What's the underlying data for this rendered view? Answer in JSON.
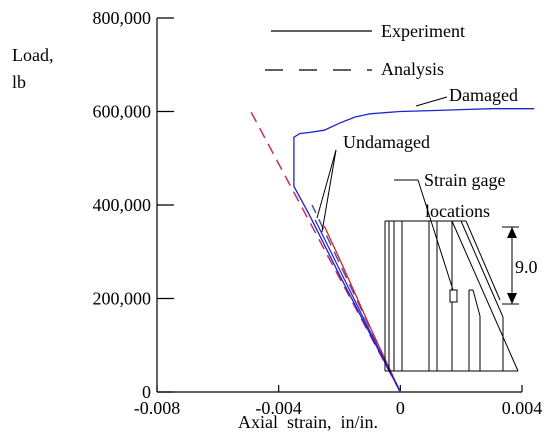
{
  "chart_data": {
    "type": "line",
    "title": "",
    "xlabel": "Axial  strain,  in/in.",
    "ylabel_lines": [
      "Load,",
      "lb"
    ],
    "xlim": [
      -0.008,
      0.004
    ],
    "ylim": [
      0,
      800000
    ],
    "x_ticks": [
      -0.008,
      -0.004,
      0,
      0.004
    ],
    "x_tick_labels": [
      "-0.008",
      "-0.004",
      "0",
      "0.004"
    ],
    "y_ticks": [
      0,
      200000,
      400000,
      600000,
      800000
    ],
    "y_tick_labels": [
      "0",
      "200,000",
      "400,000",
      "600,000",
      "800,000"
    ],
    "grid": false,
    "legend": {
      "position": "top-right",
      "entries": [
        {
          "label": "Experiment",
          "style": "solid"
        },
        {
          "label": "Analysis",
          "style": "dashed"
        }
      ]
    },
    "series": [
      {
        "key": "analysis_damaged",
        "style": "dashed",
        "color": "#cc2a6a",
        "x": [
          0,
          -0.005
        ],
        "y": [
          0,
          610000
        ]
      },
      {
        "key": "analysis_undamaged",
        "style": "dashed",
        "color": "#4a4fb0",
        "x": [
          0,
          -0.0029
        ],
        "y": [
          0,
          400000
        ]
      },
      {
        "key": "experiment_undamaged_a",
        "style": "solid",
        "color": "#dd2020",
        "x": [
          0,
          -0.001,
          -0.002,
          -0.0025
        ],
        "y": [
          0,
          140000,
          285000,
          355000
        ]
      },
      {
        "key": "experiment_undamaged_b",
        "style": "solid",
        "color": "#2b2bd0",
        "x": [
          0,
          -0.001,
          -0.002,
          -0.0028
        ],
        "y": [
          0,
          130000,
          262000,
          368000
        ]
      },
      {
        "key": "experiment_damaged",
        "style": "solid",
        "color": "#2020d0",
        "x": [
          0,
          -0.001,
          -0.002,
          -0.003,
          -0.0035,
          -0.0035,
          -0.0033,
          -0.003,
          -0.0025,
          -0.002,
          -0.0015,
          -0.001,
          0,
          0.001,
          0.002,
          0.003,
          0.004,
          0.0044
        ],
        "y": [
          0,
          125000,
          250000,
          380000,
          440000,
          545000,
          553000,
          555000,
          560000,
          575000,
          588000,
          595000,
          600000,
          602000,
          604000,
          606000,
          606000,
          606000
        ]
      }
    ],
    "annotations": [
      {
        "text": "Damaged",
        "target": "experiment_damaged"
      },
      {
        "text": "Undamaged",
        "target": "undamaged_curves"
      }
    ],
    "inset": {
      "title_lines": [
        "Strain gage",
        "locations"
      ],
      "dimension_label": "9.0"
    }
  }
}
